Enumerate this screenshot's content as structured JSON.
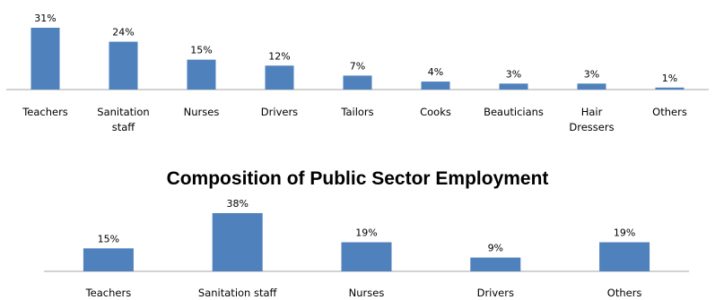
{
  "chart_data": [
    {
      "type": "bar",
      "title": "",
      "categories": [
        [
          "Teachers"
        ],
        [
          "Sanitation",
          "staff"
        ],
        [
          "Nurses"
        ],
        [
          "Drivers"
        ],
        [
          "Tailors"
        ],
        [
          "Cooks"
        ],
        [
          "Beauticians"
        ],
        [
          "Hair",
          "Dressers"
        ],
        [
          "Others"
        ]
      ],
      "values": [
        31,
        24,
        15,
        12,
        7,
        4,
        3,
        3,
        1
      ],
      "value_labels": [
        "31%",
        "24%",
        "15%",
        "12%",
        "7%",
        "4%",
        "3%",
        "3%",
        "1%"
      ],
      "ylim": [
        0,
        31
      ],
      "grid": false,
      "bar_color": "#4f81bd",
      "axis_color": "#a6a6a6"
    },
    {
      "type": "bar",
      "title": "Composition of Public Sector Employment",
      "categories": [
        [
          "Teachers"
        ],
        [
          "Sanitation staff"
        ],
        [
          "Nurses"
        ],
        [
          "Drivers"
        ],
        [
          "Others"
        ]
      ],
      "values": [
        15,
        38,
        19,
        9,
        19
      ],
      "value_labels": [
        "15%",
        "38%",
        "19%",
        "9%",
        "19%"
      ],
      "ylim": [
        0,
        38
      ],
      "grid": false,
      "bar_color": "#4f81bd",
      "axis_color": "#a6a6a6"
    }
  ]
}
